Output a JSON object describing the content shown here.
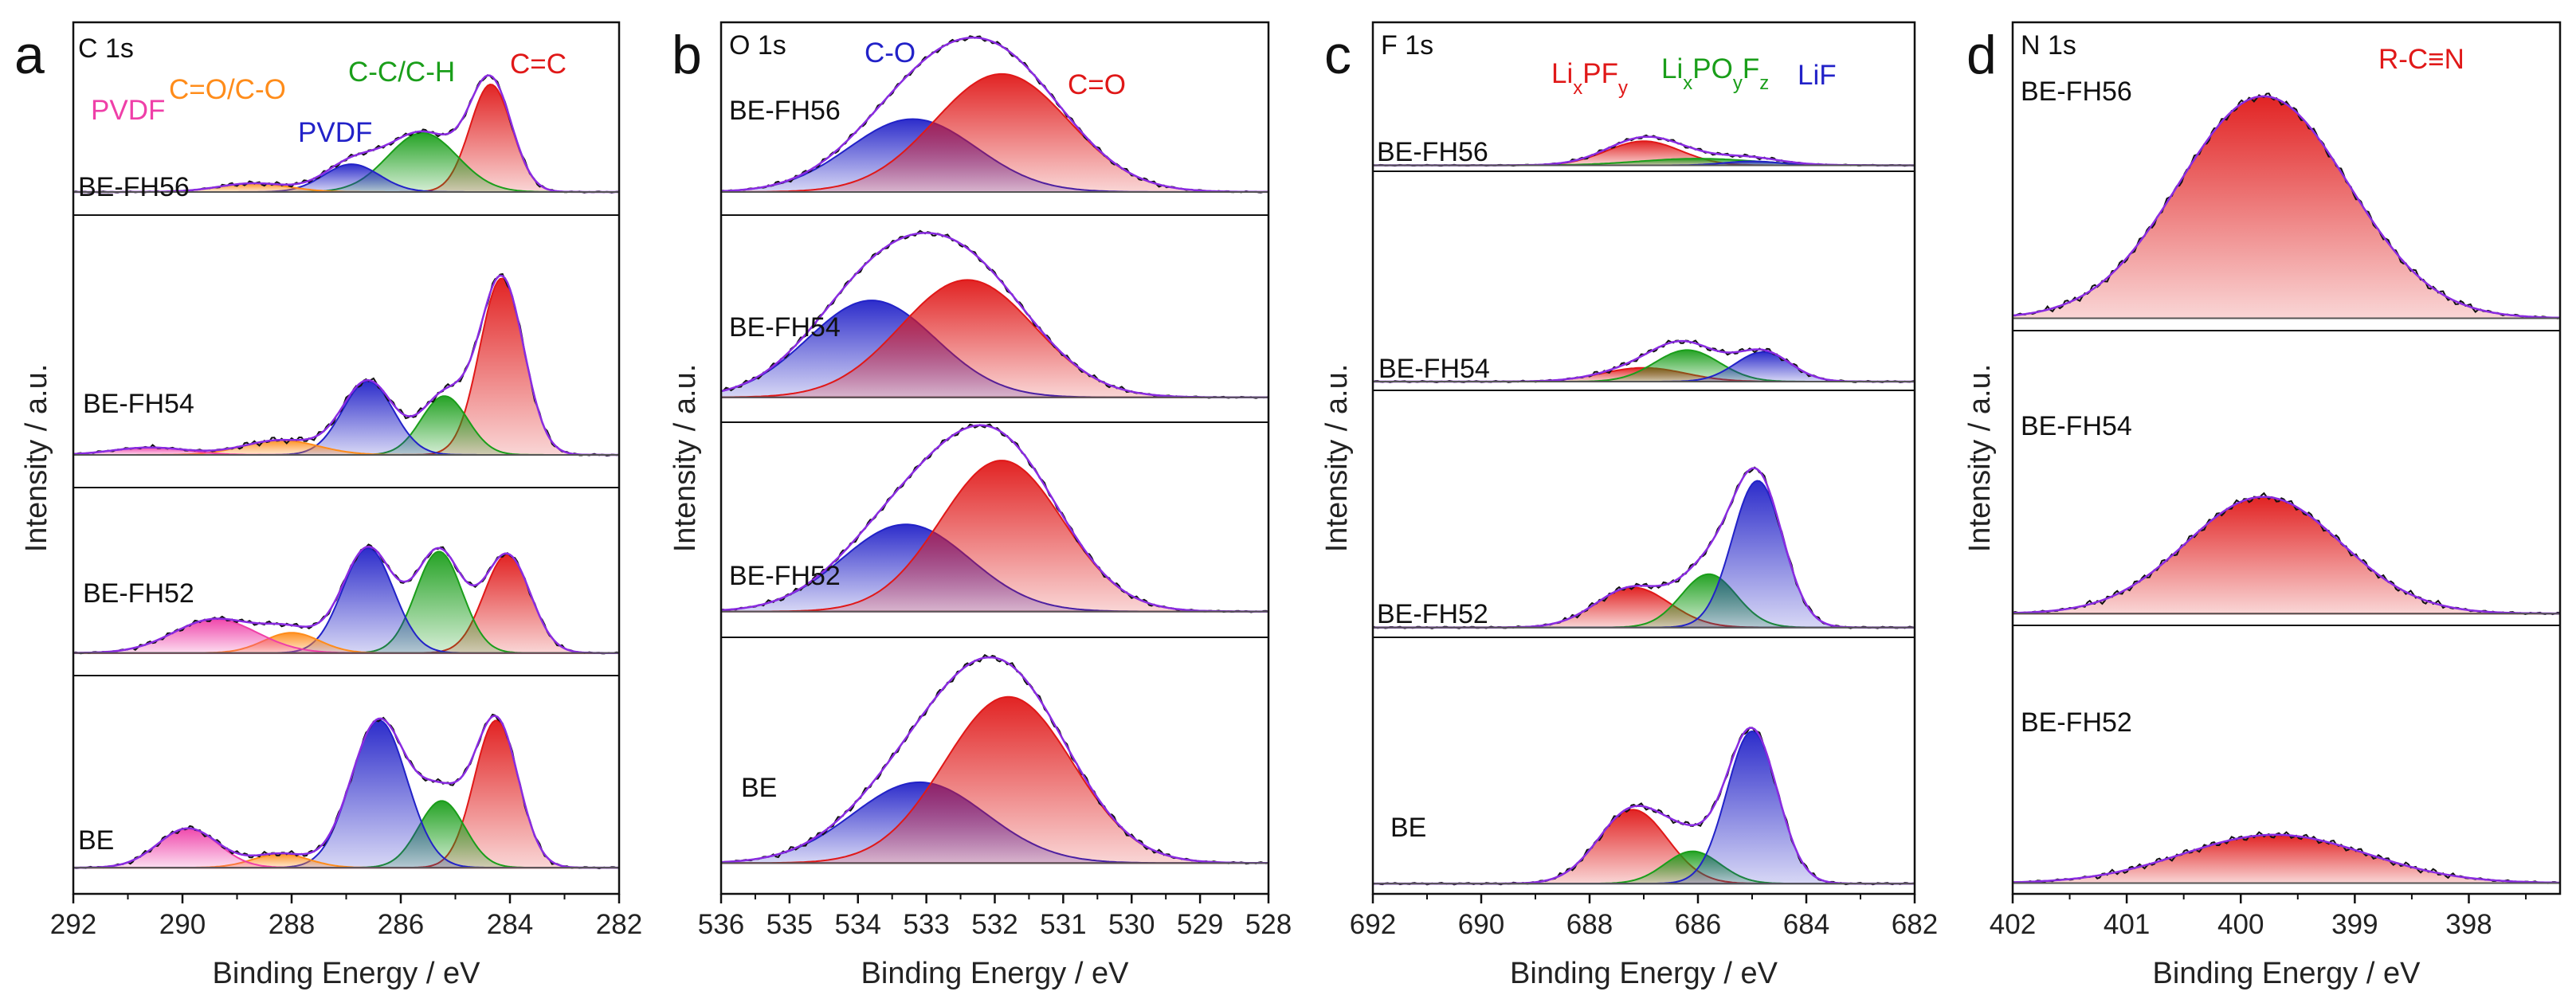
{
  "figure": {
    "colors": {
      "red": "#e01818",
      "green": "#1a9e1a",
      "blue": "#2222c8",
      "orange": "#ff8c1a",
      "pink": "#ef3fa8",
      "envelope": "#8a2be2",
      "raw": "#111111"
    }
  },
  "chart_data": [
    {
      "type": "line",
      "panel": "a",
      "core_level": "C 1s",
      "xlabel": "Binding Energy / eV",
      "ylabel": "Intensity / a.u.",
      "xlim": [
        292,
        282
      ],
      "xticks": [
        "292",
        "290",
        "288",
        "286",
        "284",
        "282"
      ],
      "legend": [
        {
          "text": "PVDF",
          "color": "pink"
        },
        {
          "text": "C=O/C-O",
          "color": "orange"
        },
        {
          "text": "PVDF",
          "color": "blue"
        },
        {
          "text": "C-C/C-H",
          "color": "green"
        },
        {
          "text": "C=C",
          "color": "red"
        }
      ],
      "series": [
        {
          "name": "BE-FH56",
          "peaks": [
            {
              "center": 284.35,
              "fwhm": 0.9,
              "height": 0.62,
              "color": "red"
            },
            {
              "center": 285.6,
              "fwhm": 1.5,
              "height": 0.34,
              "color": "green"
            },
            {
              "center": 286.9,
              "fwhm": 1.2,
              "height": 0.16,
              "color": "blue"
            },
            {
              "center": 288.7,
              "fwhm": 1.5,
              "height": 0.05,
              "color": "orange"
            }
          ]
        },
        {
          "name": "BE-FH54",
          "peaks": [
            {
              "center": 284.15,
              "fwhm": 0.95,
              "height": 0.72,
              "color": "red"
            },
            {
              "center": 285.2,
              "fwhm": 1.0,
              "height": 0.24,
              "color": "green"
            },
            {
              "center": 286.6,
              "fwhm": 1.1,
              "height": 0.3,
              "color": "blue"
            },
            {
              "center": 288.2,
              "fwhm": 1.6,
              "height": 0.06,
              "color": "orange"
            },
            {
              "center": 290.6,
              "fwhm": 1.6,
              "height": 0.03,
              "color": "pink"
            }
          ]
        },
        {
          "name": "BE-FH52",
          "peaks": [
            {
              "center": 284.05,
              "fwhm": 1.0,
              "height": 0.58,
              "color": "red"
            },
            {
              "center": 285.3,
              "fwhm": 1.0,
              "height": 0.6,
              "color": "green"
            },
            {
              "center": 286.6,
              "fwhm": 1.1,
              "height": 0.62,
              "color": "blue"
            },
            {
              "center": 288.0,
              "fwhm": 1.2,
              "height": 0.12,
              "color": "orange"
            },
            {
              "center": 289.4,
              "fwhm": 1.8,
              "height": 0.2,
              "color": "pink"
            }
          ]
        },
        {
          "name": "BE",
          "peaks": [
            {
              "center": 284.25,
              "fwhm": 0.95,
              "height": 0.75,
              "color": "red"
            },
            {
              "center": 285.25,
              "fwhm": 1.0,
              "height": 0.34,
              "color": "green"
            },
            {
              "center": 286.4,
              "fwhm": 1.2,
              "height": 0.75,
              "color": "blue"
            },
            {
              "center": 288.2,
              "fwhm": 1.2,
              "height": 0.07,
              "color": "orange"
            },
            {
              "center": 289.9,
              "fwhm": 1.3,
              "height": 0.2,
              "color": "pink"
            }
          ]
        }
      ]
    },
    {
      "type": "line",
      "panel": "b",
      "core_level": "O 1s",
      "xlabel": "Binding Energy / eV",
      "ylabel": "Intensity / a.u.",
      "xlim": [
        536,
        528
      ],
      "xticks": [
        "536",
        "535",
        "534",
        "533",
        "532",
        "531",
        "530",
        "529",
        "528"
      ],
      "legend": [
        {
          "text": "C-O",
          "color": "blue"
        },
        {
          "text": "C=O",
          "color": "red"
        }
      ],
      "series": [
        {
          "name": "BE-FH56",
          "peaks": [
            {
              "center": 533.2,
              "fwhm": 2.2,
              "height": 0.42,
              "color": "blue"
            },
            {
              "center": 531.9,
              "fwhm": 2.3,
              "height": 0.68,
              "color": "red"
            }
          ]
        },
        {
          "name": "BE-FH54",
          "peaks": [
            {
              "center": 533.8,
              "fwhm": 2.2,
              "height": 0.52,
              "color": "blue"
            },
            {
              "center": 532.4,
              "fwhm": 2.3,
              "height": 0.63,
              "color": "red"
            }
          ]
        },
        {
          "name": "BE-FH52",
          "peaks": [
            {
              "center": 533.3,
              "fwhm": 2.2,
              "height": 0.45,
              "color": "blue"
            },
            {
              "center": 531.9,
              "fwhm": 2.1,
              "height": 0.78,
              "color": "red"
            }
          ]
        },
        {
          "name": "BE",
          "peaks": [
            {
              "center": 533.1,
              "fwhm": 2.3,
              "height": 0.35,
              "color": "blue"
            },
            {
              "center": 531.8,
              "fwhm": 2.2,
              "height": 0.72,
              "color": "red"
            }
          ]
        }
      ]
    },
    {
      "type": "line",
      "panel": "c",
      "core_level": "F 1s",
      "xlabel": "Binding Energy / eV",
      "ylabel": "Intensity / a.u.",
      "xlim": [
        692,
        682
      ],
      "xticks": [
        "692",
        "690",
        "688",
        "686",
        "684",
        "682"
      ],
      "legend": [
        {
          "text": "LixPFy",
          "color": "red"
        },
        {
          "text": "LixPOyFz",
          "color": "green"
        },
        {
          "text": "LiF",
          "color": "blue"
        }
      ],
      "series": [
        {
          "name": "BE-FH56",
          "peaks": [
            {
              "center": 687.0,
              "fwhm": 1.6,
              "height": 0.18,
              "color": "red"
            },
            {
              "center": 686.0,
              "fwhm": 2.5,
              "height": 0.05,
              "color": "green"
            },
            {
              "center": 685.0,
              "fwhm": 1.2,
              "height": 0.03,
              "color": "blue"
            }
          ]
        },
        {
          "name": "BE-FH54",
          "peaks": [
            {
              "center": 687.0,
              "fwhm": 1.8,
              "height": 0.07,
              "color": "red"
            },
            {
              "center": 686.2,
              "fwhm": 1.4,
              "height": 0.16,
              "color": "green"
            },
            {
              "center": 684.8,
              "fwhm": 1.2,
              "height": 0.15,
              "color": "blue"
            }
          ]
        },
        {
          "name": "BE-FH52",
          "peaks": [
            {
              "center": 687.2,
              "fwhm": 1.6,
              "height": 0.18,
              "color": "red"
            },
            {
              "center": 685.8,
              "fwhm": 1.2,
              "height": 0.24,
              "color": "green"
            },
            {
              "center": 684.9,
              "fwhm": 1.1,
              "height": 0.66,
              "color": "blue"
            }
          ]
        },
        {
          "name": "BE",
          "peaks": [
            {
              "center": 687.2,
              "fwhm": 1.5,
              "height": 0.32,
              "color": "red"
            },
            {
              "center": 686.1,
              "fwhm": 1.2,
              "height": 0.14,
              "color": "green"
            },
            {
              "center": 685.0,
              "fwhm": 1.1,
              "height": 0.66,
              "color": "blue"
            }
          ]
        }
      ]
    },
    {
      "type": "line",
      "panel": "d",
      "core_level": "N 1s",
      "xlabel": "Binding Energy / eV",
      "ylabel": "Intensity / a.u.",
      "xlim": [
        402,
        397.2
      ],
      "xticks": [
        "402",
        "401",
        "400",
        "399",
        "398"
      ],
      "legend": [
        {
          "text": "R-C≡N",
          "color": "red"
        }
      ],
      "series": [
        {
          "name": "BE-FH56",
          "peaks": [
            {
              "center": 399.8,
              "fwhm": 1.75,
              "height": 0.8,
              "color": "red"
            }
          ]
        },
        {
          "name": "BE-FH54",
          "peaks": [
            {
              "center": 399.8,
              "fwhm": 1.6,
              "height": 0.44,
              "color": "red"
            }
          ]
        },
        {
          "name": "BE-FH52",
          "peaks": [
            {
              "center": 399.7,
              "fwhm": 1.9,
              "height": 0.2,
              "color": "red"
            }
          ]
        }
      ]
    }
  ]
}
